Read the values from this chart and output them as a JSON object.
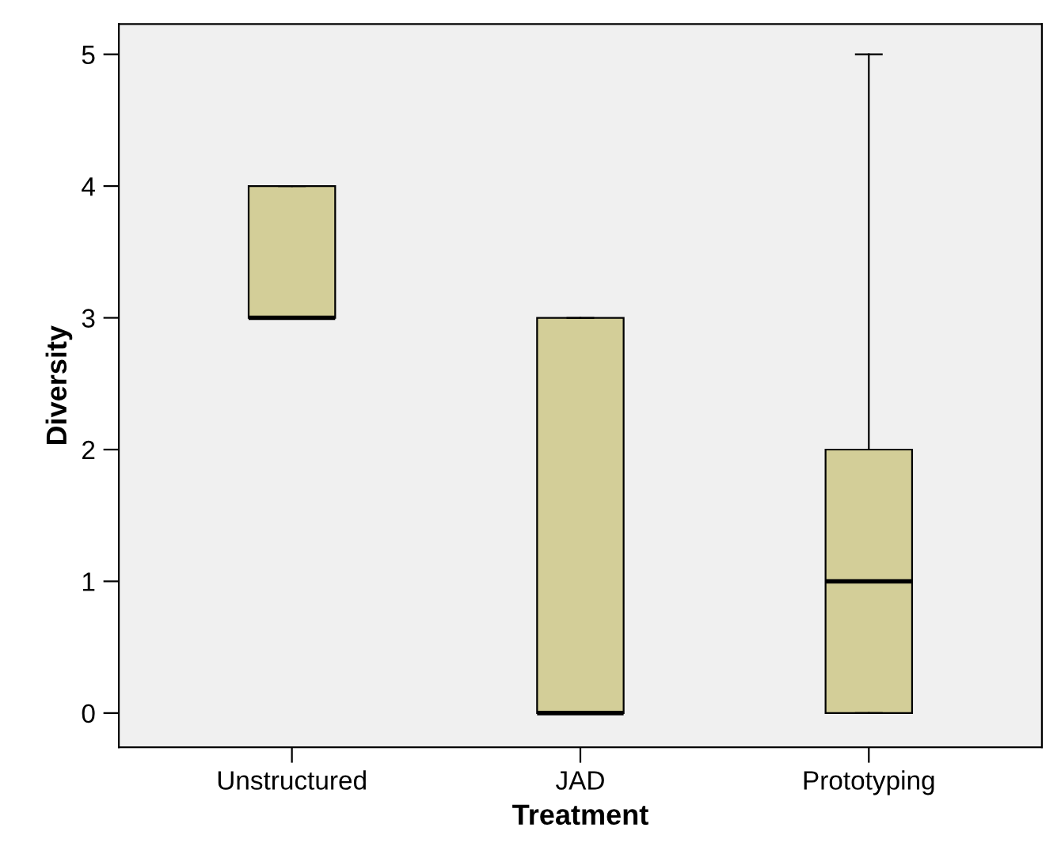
{
  "chart_data": {
    "type": "box",
    "xlabel": "Treatment",
    "ylabel": "Diversity",
    "categories": [
      "Unstructured",
      "JAD",
      "Prototyping"
    ],
    "boxes": [
      {
        "low": 3,
        "q1": 3,
        "median": 3,
        "q3": 4,
        "high": 4
      },
      {
        "low": 0,
        "q1": 0,
        "median": 0,
        "q3": 3,
        "high": 3
      },
      {
        "low": 0,
        "q1": 0,
        "median": 1,
        "q3": 2,
        "high": 5
      }
    ],
    "color": "#d3ce98",
    "ylim": [
      -0.26,
      5.23
    ],
    "yticks": [
      0,
      1,
      2,
      3,
      4,
      5
    ],
    "grid": false,
    "legend": false
  }
}
